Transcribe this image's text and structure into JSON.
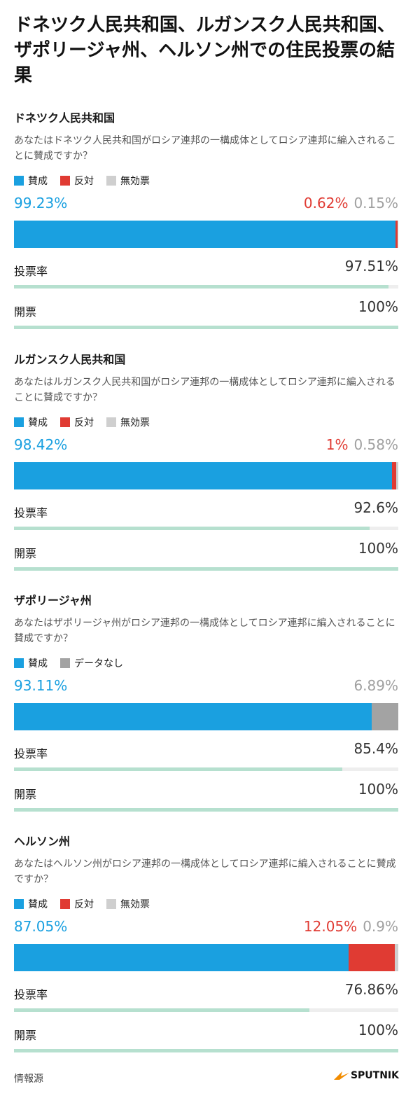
{
  "title": "ドネツク人民共和国、ルガンスク人民共和国、ザポリージャ州、ヘルソン州での住民投票の結果",
  "colors": {
    "yes": "#1aa0e0",
    "no": "#e03b33",
    "invalid": "#cfcfcf",
    "nodata": "#a3a3a3",
    "turnout": "#b6e0cf"
  },
  "chart_data": [
    {
      "type": "bar",
      "title": "ドネツク人民共和国",
      "question": "あなたはドネツク人民共和国がロシア連邦の一構成体としてロシア連邦に編入されることに賛成ですか？",
      "legend": [
        "賛成",
        "反対",
        "無効票"
      ],
      "series": [
        {
          "name": "賛成",
          "value": 99.23,
          "label": "99.23%"
        },
        {
          "name": "反対",
          "value": 0.62,
          "label": "0.62%"
        },
        {
          "name": "無効票",
          "value": 0.15,
          "label": "0.15%"
        }
      ],
      "turnout": {
        "label": "投票率",
        "value": 97.51,
        "text": "97.51%"
      },
      "counted": {
        "label": "開票",
        "value": 100,
        "text": "100%"
      }
    },
    {
      "type": "bar",
      "title": "ルガンスク人民共和国",
      "question": "あなたはルガンスク人民共和国がロシア連邦の一構成体としてロシア連邦に編入されることに賛成ですか？",
      "legend": [
        "賛成",
        "反対",
        "無効票"
      ],
      "series": [
        {
          "name": "賛成",
          "value": 98.42,
          "label": "98.42%"
        },
        {
          "name": "反対",
          "value": 1,
          "label": "1%"
        },
        {
          "name": "無効票",
          "value": 0.58,
          "label": "0.58%"
        }
      ],
      "turnout": {
        "label": "投票率",
        "value": 92.6,
        "text": "92.6%"
      },
      "counted": {
        "label": "開票",
        "value": 100,
        "text": "100%"
      }
    },
    {
      "type": "bar",
      "title": "ザポリージャ州",
      "question": "あなたはザポリージャ州がロシア連邦の一構成体としてロシア連邦に編入されることに賛成ですか？",
      "legend": [
        "賛成",
        "データなし"
      ],
      "series": [
        {
          "name": "賛成",
          "value": 93.11,
          "label": "93.11%"
        },
        {
          "name": "データなし",
          "value": 6.89,
          "label": "6.89%"
        }
      ],
      "turnout": {
        "label": "投票率",
        "value": 85.4,
        "text": "85.4%"
      },
      "counted": {
        "label": "開票",
        "value": 100,
        "text": "100%"
      }
    },
    {
      "type": "bar",
      "title": "ヘルソン州",
      "question": "あなたはヘルソン州がロシア連邦の一構成体としてロシア連邦に編入されることに賛成ですか？",
      "legend": [
        "賛成",
        "反対",
        "無効票"
      ],
      "series": [
        {
          "name": "賛成",
          "value": 87.05,
          "label": "87.05%"
        },
        {
          "name": "反対",
          "value": 12.05,
          "label": "12.05%"
        },
        {
          "name": "無効票",
          "value": 0.9,
          "label": "0.9%"
        }
      ],
      "turnout": {
        "label": "投票率",
        "value": 76.86,
        "text": "76.86%"
      },
      "counted": {
        "label": "開票",
        "value": 100,
        "text": "100%"
      }
    }
  ],
  "footer": {
    "source": "情報源",
    "logo": "SPUTNIK",
    "logo_icon": "sputnik-logo-icon"
  }
}
